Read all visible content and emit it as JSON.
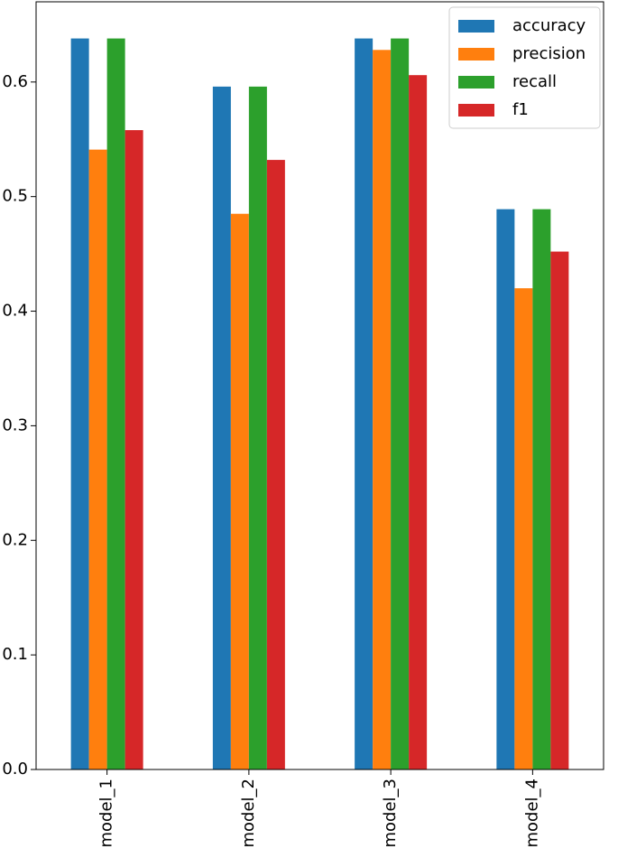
{
  "chart_data": {
    "type": "bar",
    "categories": [
      "model_1",
      "model_2",
      "model_3",
      "model_4"
    ],
    "series": [
      {
        "name": "accuracy",
        "color": "#1f77b4",
        "values": [
          0.638,
          0.596,
          0.638,
          0.489
        ]
      },
      {
        "name": "precision",
        "color": "#ff7f0e",
        "values": [
          0.541,
          0.485,
          0.628,
          0.42
        ]
      },
      {
        "name": "recall",
        "color": "#2ca02c",
        "values": [
          0.638,
          0.596,
          0.638,
          0.489
        ]
      },
      {
        "name": "f1",
        "color": "#d62728",
        "values": [
          0.558,
          0.532,
          0.606,
          0.452
        ]
      }
    ],
    "yticks": [
      "0.0",
      "0.1",
      "0.2",
      "0.3",
      "0.4",
      "0.5",
      "0.6"
    ],
    "ylim": [
      0,
      0.67
    ],
    "xlabel": "",
    "ylabel": "",
    "title": "",
    "grid": false,
    "legend_position": "upper-right",
    "x_tick_rotation": "vertical"
  }
}
